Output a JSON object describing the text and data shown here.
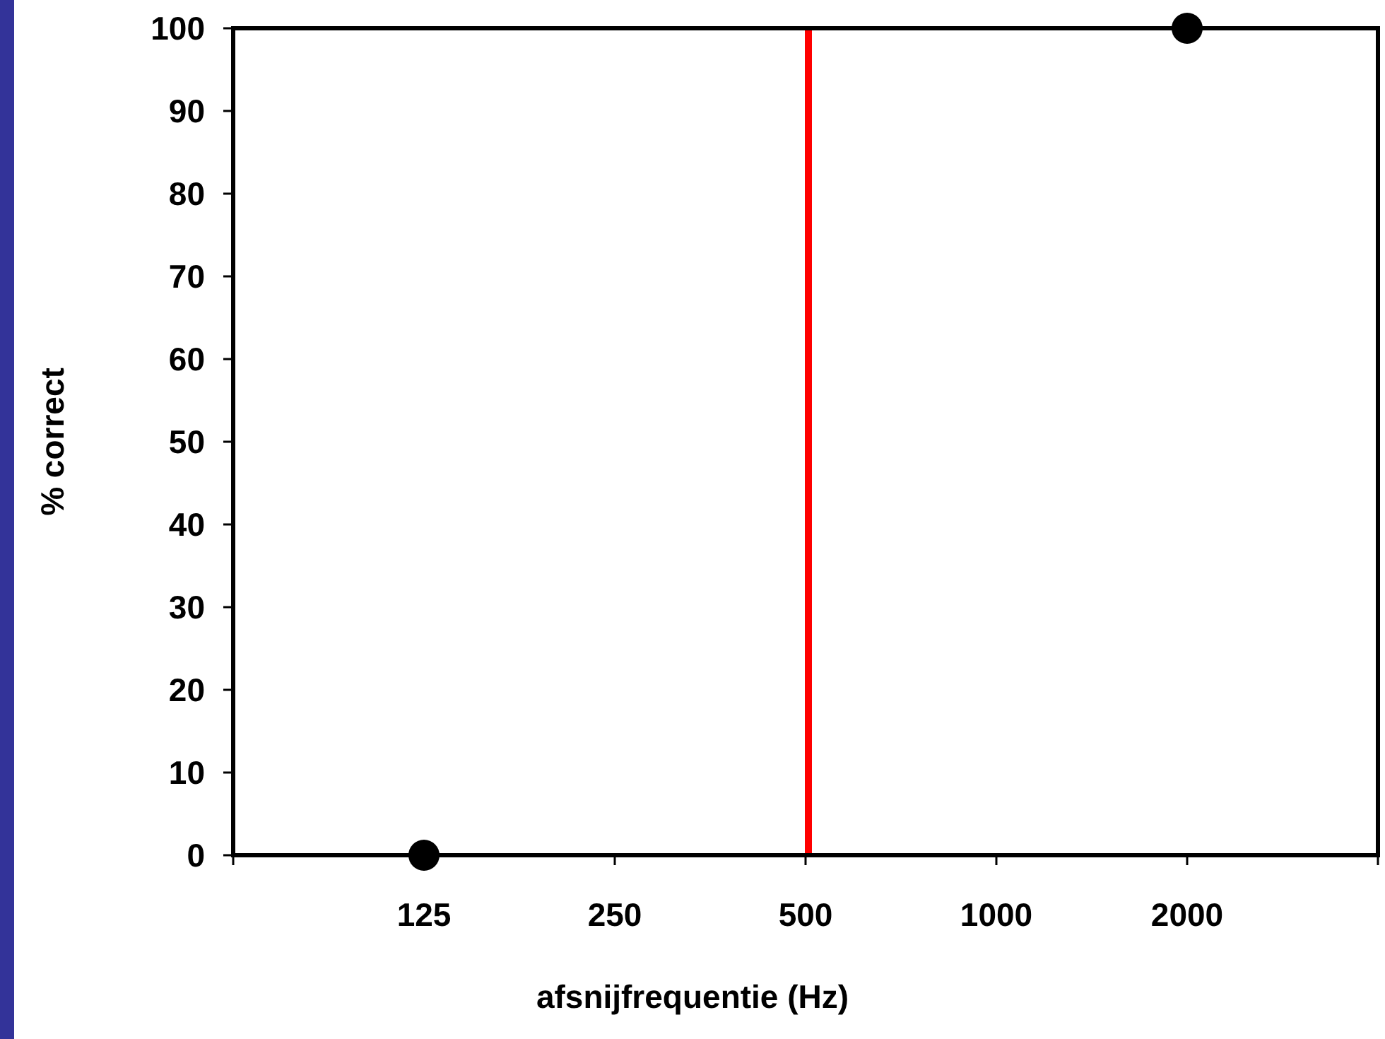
{
  "chart_data": {
    "type": "scatter",
    "xlabel": "afsnijfrequentie (Hz)",
    "ylabel": "% correct",
    "categories": [
      null,
      "125",
      "250",
      "500",
      "1000",
      "2000",
      null
    ],
    "series": [
      {
        "color": "#000000",
        "values": [
          null,
          0,
          null,
          null,
          null,
          100,
          null
        ]
      }
    ],
    "ylim": [
      0,
      100
    ],
    "yticks": [
      0,
      10,
      20,
      30,
      40,
      50,
      60,
      70,
      80,
      90,
      100
    ],
    "ref_lines": [
      {
        "axis": "x",
        "value": "500",
        "color": "#ff0000"
      }
    ],
    "marker": "circle"
  }
}
